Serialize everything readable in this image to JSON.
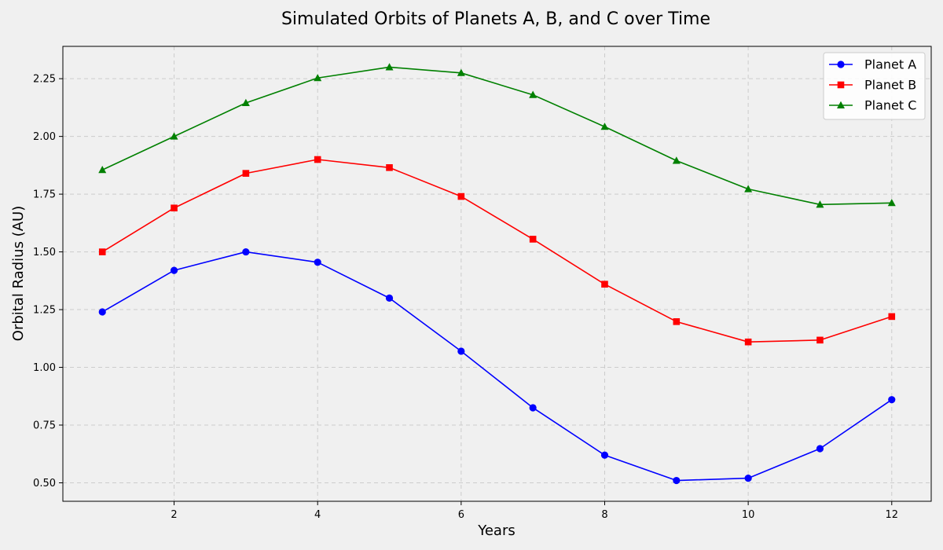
{
  "chart_data": {
    "type": "line",
    "title": "Simulated Orbits of Planets A, B, and C over Time",
    "xlabel": "Years",
    "ylabel": "Orbital Radius (AU)",
    "x": [
      1,
      2,
      3,
      4,
      5,
      6,
      7,
      8,
      9,
      10,
      11,
      12
    ],
    "xlim": [
      0.45,
      12.55
    ],
    "ylim": [
      0.42,
      2.39
    ],
    "xticks": [
      2,
      4,
      6,
      8,
      10,
      12
    ],
    "yticks": [
      0.5,
      0.75,
      1.0,
      1.25,
      1.5,
      1.75,
      2.0,
      2.25
    ],
    "xtick_labels": [
      "2",
      "4",
      "6",
      "8",
      "10",
      "12"
    ],
    "ytick_labels": [
      "0.50",
      "0.75",
      "1.00",
      "1.25",
      "1.50",
      "1.75",
      "2.00",
      "2.25"
    ],
    "grid": true,
    "legend_position": "top-right",
    "series": [
      {
        "name": "Planet A",
        "color": "#0000ff",
        "marker": "circle",
        "values": [
          1.24,
          1.42,
          1.5,
          1.455,
          1.3,
          1.07,
          0.825,
          0.62,
          0.51,
          0.52,
          0.648,
          0.86
        ]
      },
      {
        "name": "Planet B",
        "color": "#ff0000",
        "marker": "square",
        "values": [
          1.5,
          1.69,
          1.84,
          1.9,
          1.865,
          1.74,
          1.555,
          1.36,
          1.198,
          1.11,
          1.118,
          1.22
        ]
      },
      {
        "name": "Planet C",
        "color": "#008000",
        "marker": "triangle",
        "values": [
          1.855,
          2.0,
          2.145,
          2.253,
          2.3,
          2.275,
          2.18,
          2.042,
          1.895,
          1.772,
          1.705,
          1.712
        ]
      }
    ]
  }
}
